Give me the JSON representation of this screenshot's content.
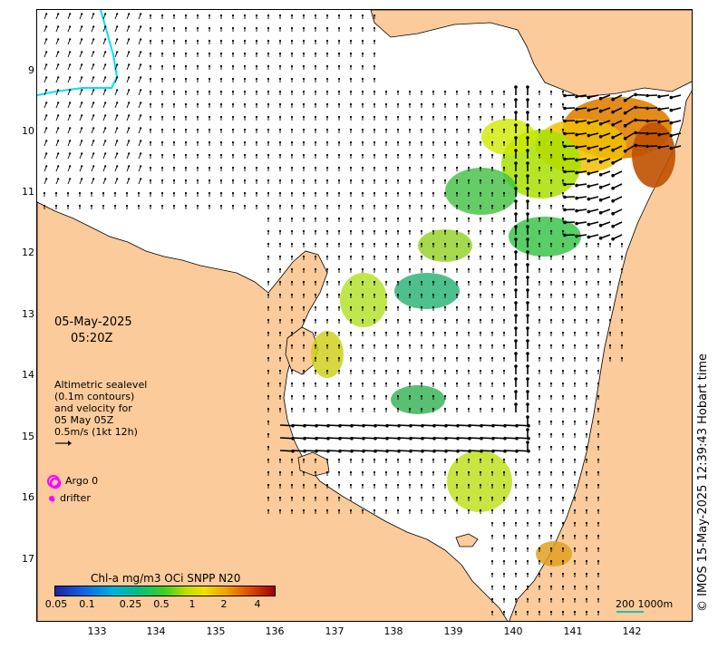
{
  "map": {
    "date": "05-May-2025",
    "time": "05:20Z",
    "altimetry_lines": [
      "Altimetric sealevel",
      "(0.1m contours)",
      "and velocity for",
      "05 May 05Z",
      "0.5m/s (1kt 12h)"
    ],
    "legend": {
      "argo_label": "Argo 0",
      "drifter_label": "drifter",
      "argo_color": "#ff00ff",
      "drifter_color": "#ff00ff"
    },
    "credit": "© IMOS 15-May-2025 12:39:43 Hobart time",
    "colorbar": {
      "title": "Chl-a mg/m3 OCi SNPP N20",
      "ticks": [
        "0.05",
        "0.1",
        "0.25",
        "0.5",
        "1",
        "2",
        "4"
      ]
    },
    "scale_label": "200  1000m",
    "x_ticks": [
      "133",
      "134",
      "135",
      "136",
      "137",
      "138",
      "139",
      "140",
      "141",
      "142"
    ],
    "y_ticks": [
      "9",
      "10",
      "11",
      "12",
      "13",
      "14",
      "15",
      "16",
      "17"
    ],
    "colors": {
      "land": "#fbcb9b",
      "sea": "#ffffff",
      "boundary": "#00e0ff"
    }
  }
}
